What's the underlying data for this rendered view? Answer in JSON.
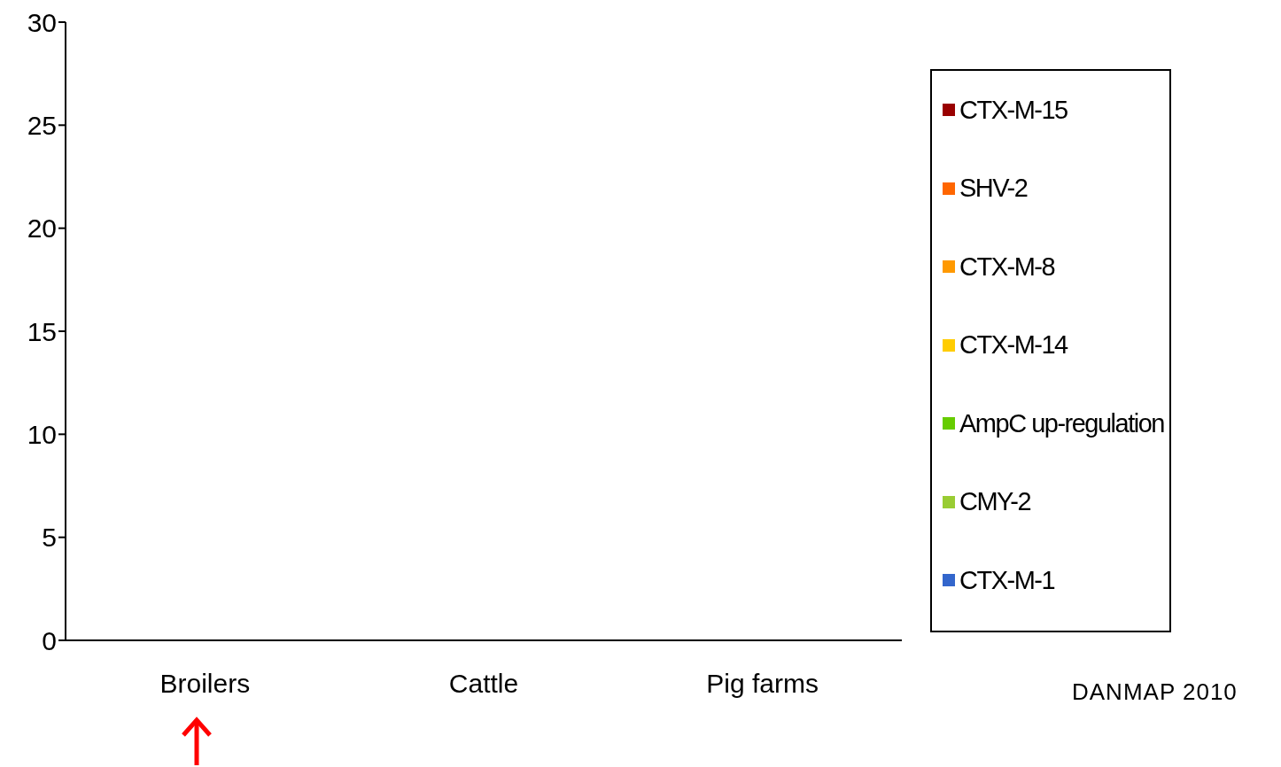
{
  "chart_data": {
    "type": "bar",
    "categories": [
      "Broilers",
      "Cattle",
      "Pig farms"
    ],
    "series": [
      {
        "name": "CTX-M-15",
        "color": "#990000",
        "values": [
          0,
          0,
          0
        ]
      },
      {
        "name": "SHV-2",
        "color": "#ff6600",
        "values": [
          0,
          0,
          0
        ]
      },
      {
        "name": "CTX-M-8",
        "color": "#ff9900",
        "values": [
          0,
          0,
          0
        ]
      },
      {
        "name": "CTX-M-14",
        "color": "#ffcc00",
        "values": [
          0,
          0,
          0
        ]
      },
      {
        "name": "AmpC up-regulation",
        "color": "#66cc00",
        "values": [
          0,
          0,
          0
        ]
      },
      {
        "name": "CMY-2",
        "color": "#99cc33",
        "values": [
          0,
          0,
          0
        ]
      },
      {
        "name": "CTX-M-1",
        "color": "#3366cc",
        "values": [
          0,
          0,
          0
        ]
      }
    ],
    "ylim": [
      0,
      30
    ],
    "yticks": [
      0,
      5,
      10,
      15,
      20,
      25,
      30
    ],
    "grid": false,
    "legend": "right",
    "annotations": [
      "DANMAP 2010"
    ]
  }
}
